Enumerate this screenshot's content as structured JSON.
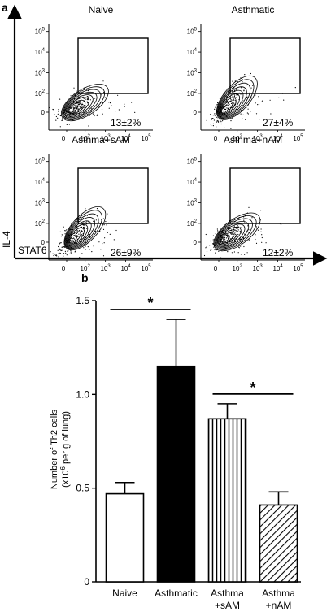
{
  "panel_a": {
    "label": "a",
    "y_axis_label": "IL-4",
    "x_axis_label": "STAT6",
    "tick_labels": [
      "0",
      "10",
      "10",
      "10",
      "10",
      "10"
    ],
    "tick_exponents": [
      "",
      "2",
      "3",
      "4",
      "5"
    ],
    "plots": [
      {
        "title": "Naive",
        "percentage": "13±2%"
      },
      {
        "title": "Asthmatic",
        "percentage": "27±4%"
      },
      {
        "title": "Asthma+sAM",
        "percentage": "26±9%"
      },
      {
        "title": "Asthma+nAM",
        "percentage": "12±2%"
      }
    ]
  },
  "chart_data": {
    "type": "bar",
    "panel_label": "b",
    "categories": [
      "Naive",
      "Asthmatic",
      "Asthma\n+sAM",
      "Asthma\n+nAM"
    ],
    "values": [
      0.47,
      1.15,
      0.87,
      0.41
    ],
    "errors": [
      0.06,
      0.25,
      0.08,
      0.07
    ],
    "fills": [
      "white",
      "black",
      "vertical-stripes",
      "diagonal-stripes"
    ],
    "ylabel_line1": "Number of Th2 cells",
    "ylabel_line2_pre": "(x10",
    "ylabel_line2_sup": "6",
    "ylabel_line2_post": " per g of lung)",
    "ylim": [
      0,
      1.5
    ],
    "yticks": [
      "0",
      "0.5",
      "1.0",
      "1.5"
    ],
    "significance": [
      {
        "from": 0,
        "to": 1,
        "label": "*"
      },
      {
        "from": 2,
        "to": 3,
        "label": "*"
      }
    ]
  }
}
